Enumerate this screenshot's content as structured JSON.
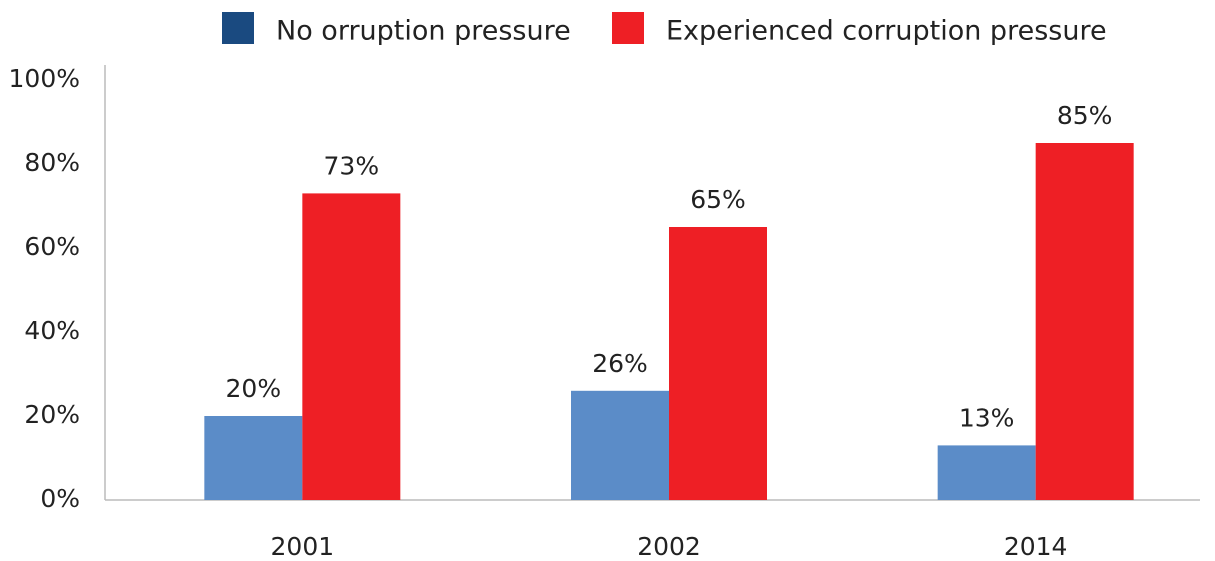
{
  "chart_data": {
    "type": "bar",
    "categories": [
      "2001",
      "2002",
      "2014"
    ],
    "series": [
      {
        "name": "No orruption pressure",
        "color": "#5b8cc8",
        "legend_color": "#1a4a80",
        "values": [
          20,
          26,
          13
        ],
        "value_labels": [
          "20%",
          "26%",
          "13%"
        ]
      },
      {
        "name": "Experienced corruption pressure",
        "color": "#ee1f25",
        "legend_color": "#ee1f25",
        "values": [
          73,
          65,
          85
        ],
        "value_labels": [
          "73%",
          "65%",
          "85%"
        ]
      }
    ],
    "ylim": [
      0,
      100
    ],
    "yticks": [
      {
        "value": 0,
        "label": "0%"
      },
      {
        "value": 20,
        "label": "20%"
      },
      {
        "value": 40,
        "label": "40%"
      },
      {
        "value": 60,
        "label": "60%"
      },
      {
        "value": 80,
        "label": "80%"
      },
      {
        "value": 100,
        "label": "100%"
      }
    ],
    "grid": false,
    "legend": "top"
  }
}
